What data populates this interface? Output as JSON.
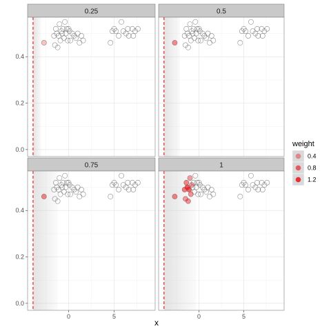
{
  "chart_data": {
    "type": "scatter",
    "xlabel": "x",
    "ylabel": "",
    "xlim": [
      -4.5,
      9.5
    ],
    "ylim": [
      -0.03,
      0.57
    ],
    "x_ticks": [
      0,
      5
    ],
    "y_ticks": [
      0.0,
      0.2,
      0.4
    ],
    "y_tick_labels": [
      "0.0",
      "0.2",
      "0.4"
    ],
    "grid": true,
    "vline_x": -3.9,
    "vline_color": "#ff2a2a",
    "shade_color": "#cccccc",
    "weight_color": "#e8161b",
    "base_points": [
      [
        -2.7,
        0.46
      ],
      [
        -1.6,
        0.49
      ],
      [
        -1.4,
        0.52
      ],
      [
        -1.3,
        0.5
      ],
      [
        -1.1,
        0.49
      ],
      [
        -1.0,
        0.54
      ],
      [
        -0.9,
        0.47
      ],
      [
        -0.8,
        0.51
      ],
      [
        -0.7,
        0.5
      ],
      [
        -0.6,
        0.52
      ],
      [
        -0.5,
        0.48
      ],
      [
        -0.4,
        0.55
      ],
      [
        -0.3,
        0.5
      ],
      [
        -0.2,
        0.52
      ],
      [
        -0.1,
        0.47
      ],
      [
        0.0,
        0.52
      ],
      [
        0.1,
        0.51
      ],
      [
        0.2,
        0.47
      ],
      [
        0.4,
        0.5
      ],
      [
        0.6,
        0.49
      ],
      [
        0.8,
        0.48
      ],
      [
        1.0,
        0.5
      ],
      [
        1.2,
        0.46
      ],
      [
        1.4,
        0.49
      ],
      [
        1.6,
        0.47
      ],
      [
        -1.2,
        0.44
      ],
      [
        -1.5,
        0.45
      ],
      [
        4.6,
        0.46
      ],
      [
        4.8,
        0.51
      ],
      [
        5.0,
        0.52
      ],
      [
        5.2,
        0.51
      ],
      [
        5.5,
        0.49
      ],
      [
        5.8,
        0.55
      ],
      [
        6.0,
        0.51
      ],
      [
        6.3,
        0.5
      ],
      [
        6.6,
        0.49
      ],
      [
        7.0,
        0.52
      ],
      [
        7.3,
        0.51
      ],
      [
        7.6,
        0.52
      ],
      [
        7.1,
        0.49
      ],
      [
        6.5,
        0.52
      ]
    ],
    "panels": [
      {
        "label": "0.25",
        "shade_to": -3.0,
        "weighted": [
          [
            -2.7,
            0.46,
            0.02
          ]
        ]
      },
      {
        "label": "0.5",
        "shade_to": -2.1,
        "weighted": [
          [
            -2.7,
            0.46,
            0.45
          ]
        ]
      },
      {
        "label": "0.75",
        "shade_to": -1.2,
        "weighted": [
          [
            -2.7,
            0.46,
            0.5
          ]
        ]
      },
      {
        "label": "1",
        "shade_to": -0.3,
        "weighted": [
          [
            -2.7,
            0.46,
            0.5
          ],
          [
            -1.6,
            0.49,
            0.6
          ],
          [
            -1.4,
            0.52,
            0.5
          ],
          [
            -1.3,
            0.5,
            0.9
          ],
          [
            -1.1,
            0.49,
            0.8
          ],
          [
            -1.2,
            0.44,
            0.4
          ],
          [
            -1.0,
            0.54,
            0.3
          ],
          [
            -0.9,
            0.47,
            0.4
          ],
          [
            -0.8,
            0.51,
            0.3
          ],
          [
            -1.5,
            0.45,
            0.3
          ]
        ]
      }
    ],
    "legend": {
      "title": "weight",
      "position": "right",
      "entries": [
        {
          "label": "0.4",
          "value": 0.4
        },
        {
          "label": "0.8",
          "value": 0.8
        },
        {
          "label": "1.2",
          "value": 1.2
        }
      ]
    }
  }
}
